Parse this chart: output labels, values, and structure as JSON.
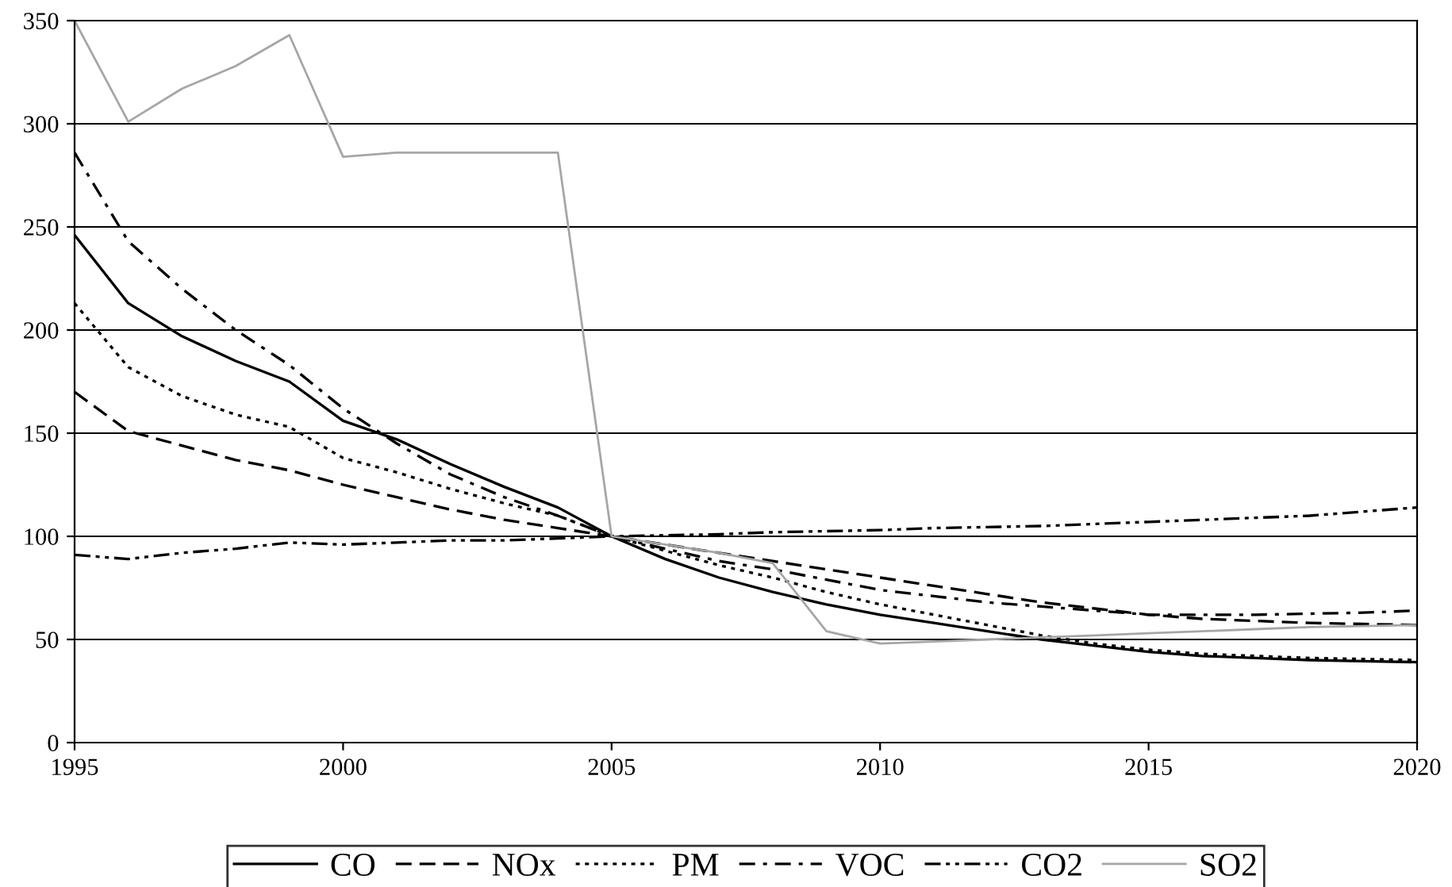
{
  "chart_data": {
    "type": "line",
    "x": [
      1995,
      1996,
      1997,
      1998,
      1999,
      2000,
      2001,
      2002,
      2003,
      2004,
      2005,
      2006,
      2007,
      2008,
      2009,
      2010,
      2011,
      2012,
      2013,
      2014,
      2015,
      2016,
      2017,
      2018,
      2019,
      2020
    ],
    "series": [
      {
        "name": "CO",
        "color": "#000000",
        "line_style": "solid",
        "values": [
          246,
          213,
          197,
          185,
          175,
          156,
          147,
          135,
          124,
          114,
          100,
          89,
          80,
          73,
          67,
          62,
          58,
          54,
          50,
          47,
          44,
          42,
          41,
          40,
          39.5,
          39
        ]
      },
      {
        "name": "NOx",
        "color": "#000000",
        "line_style": "dashed",
        "values": [
          170,
          151,
          144,
          137,
          132,
          125,
          119,
          113,
          108,
          104,
          100,
          96,
          92,
          88,
          84,
          80,
          76,
          72,
          68,
          65,
          62,
          60,
          59,
          58,
          57.5,
          57
        ]
      },
      {
        "name": "PM",
        "color": "#000000",
        "line_style": "dotted",
        "values": [
          213,
          182,
          168,
          159,
          153,
          138,
          131,
          123,
          116,
          110,
          100,
          93,
          86,
          80,
          73,
          67,
          62,
          57,
          52,
          48,
          45,
          43,
          42,
          41,
          40.5,
          40
        ]
      },
      {
        "name": "VOC",
        "color": "#000000",
        "line_style": "dashdot",
        "values": [
          286,
          243,
          220,
          200,
          183,
          162,
          145,
          130,
          119,
          110,
          100,
          94,
          88,
          84,
          79,
          74,
          71,
          68,
          66,
          64,
          62,
          62,
          62,
          62.5,
          63,
          64
        ]
      },
      {
        "name": "CO2",
        "color": "#000000",
        "line_style": "dashdotdot",
        "values": [
          91,
          89,
          92,
          94,
          97,
          96,
          97,
          98,
          98,
          99,
          100,
          100.5,
          101,
          102,
          102.5,
          103,
          104,
          104.5,
          105,
          106,
          107,
          108,
          109,
          110,
          112,
          114
        ]
      },
      {
        "name": "SO2",
        "color": "#a6a6a6",
        "line_style": "solid",
        "values": [
          350,
          301,
          317,
          328,
          343,
          284,
          286,
          286,
          286,
          286,
          100,
          96,
          92,
          87,
          54,
          48,
          49,
          50,
          51,
          52,
          53,
          54,
          55,
          56,
          56.5,
          57
        ]
      }
    ],
    "xlim": [
      1995,
      2020
    ],
    "xticks": [
      1995,
      2000,
      2005,
      2010,
      2015,
      2020
    ],
    "ylim": [
      0,
      350
    ],
    "yticks": [
      0,
      50,
      100,
      150,
      200,
      250,
      300,
      350
    ],
    "grid": "y",
    "legend": "bottom"
  }
}
